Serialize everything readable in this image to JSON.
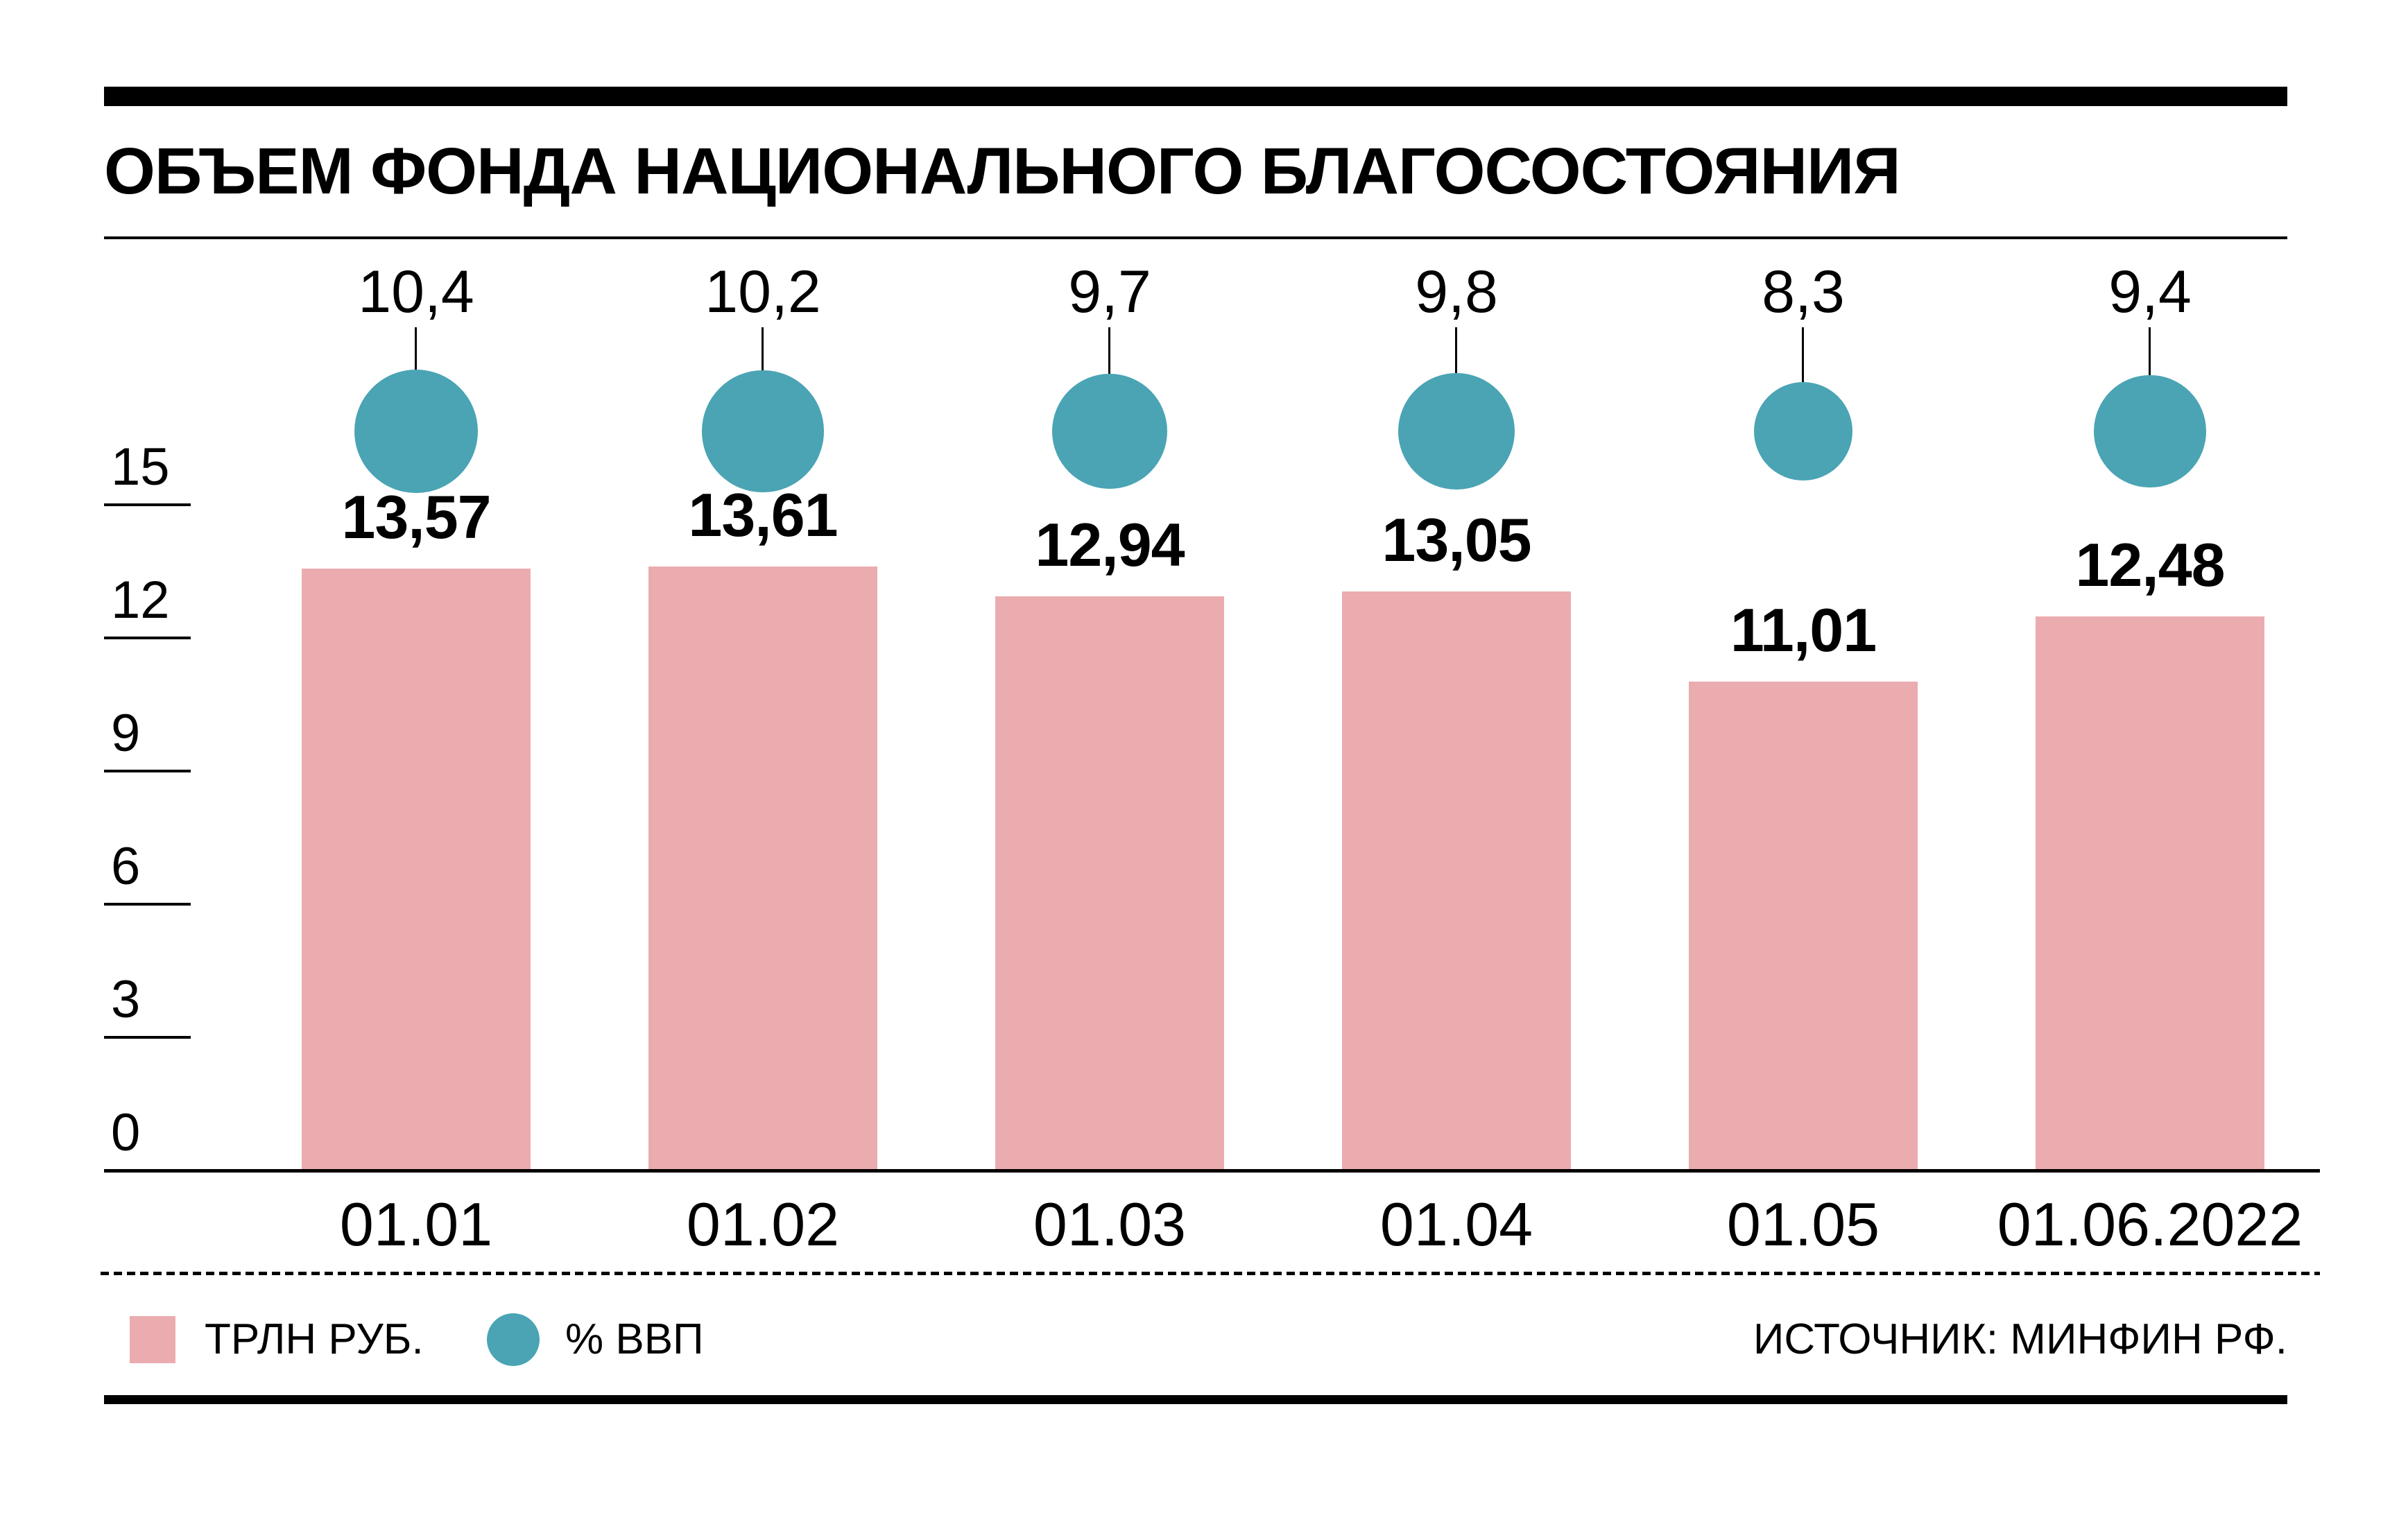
{
  "title": "ОБЪЕМ ФОНДА НАЦИОНАЛЬНОГО БЛАГОСОСТОЯНИЯ",
  "chart_data": {
    "type": "bar",
    "categories": [
      "01.01",
      "01.02",
      "01.03",
      "01.04",
      "01.05",
      "01.06.2022"
    ],
    "series": [
      {
        "name": "ТРЛН РУБ.",
        "kind": "bar",
        "values": [
          13.57,
          13.61,
          12.94,
          13.05,
          11.01,
          12.48
        ],
        "labels": [
          "13,57",
          "13,61",
          "12,94",
          "13,05",
          "11,01",
          "12,48"
        ],
        "color": "#EBACB0"
      },
      {
        "name": "% ВВП",
        "kind": "sized-circle",
        "values": [
          10.4,
          10.2,
          9.7,
          9.8,
          8.3,
          9.4
        ],
        "labels": [
          "10,4",
          "10,2",
          "9,7",
          "9,8",
          "8,3",
          "9,4"
        ],
        "color": "#4AA4B4"
      }
    ],
    "title": "ОБЪЕМ ФОНДА НАЦИОНАЛЬНОГО БЛАГОСОСТОЯНИЯ",
    "xlabel": "",
    "ylabel": "",
    "yticks": [
      0,
      3,
      6,
      9,
      12,
      15
    ],
    "ylim": [
      0,
      15
    ],
    "grid": false,
    "legend_position": "bottom-left"
  },
  "legend": {
    "items": [
      {
        "label": "ТРЛН РУБ.",
        "swatch": "square",
        "color": "#EBACB0"
      },
      {
        "label": "% ВВП",
        "swatch": "circle",
        "color": "#4AA4B4"
      }
    ]
  },
  "source": "ИСТОЧНИК: МИНФИН РФ.",
  "colors": {
    "bar": "#EBACB0",
    "circle": "#4AA4B4",
    "text": "#000000",
    "background": "#FFFFFF"
  }
}
